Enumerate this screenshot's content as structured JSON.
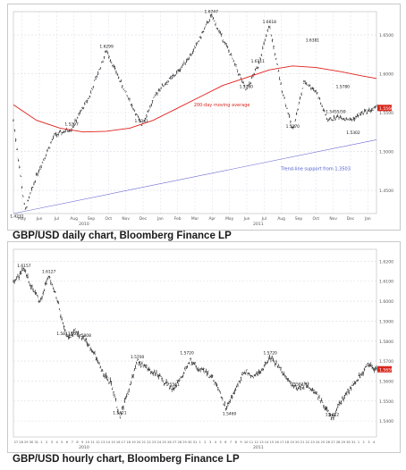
{
  "charts_meta": {
    "caption_daily": "GBP/USD daily chart, Bloomberg Finance LP",
    "caption_hourly": "GBP/USD hourly chart, Bloomberg Finance LP",
    "colors": {
      "price": "#111111",
      "ma": "#e0201a",
      "trend": "#6a6ad6",
      "grid": "#d8dde6",
      "axis": "#555555",
      "annot_red": "#d8261c",
      "annot_blue": "#4a5ad0",
      "last_box": "#d8261c"
    }
  },
  "chart_data": [
    {
      "type": "line",
      "title": "GBP/USD daily chart, Bloomberg Finance LP",
      "x_axis": {
        "tick_labels": [
          "May",
          "Jun",
          "Jul",
          "Aug",
          "Sep",
          "Oct",
          "Nov",
          "Dec",
          "Jan",
          "Feb",
          "Mar",
          "Apr",
          "May",
          "Jun",
          "Jul",
          "Aug",
          "Sep",
          "Oct",
          "Nov",
          "Dec",
          "Jan"
        ],
        "year_labels": [
          "2010",
          "2011"
        ]
      },
      "y_axis": {
        "tick_labels": [
          "1.4500",
          "1.5000",
          "1.5500",
          "1.6000",
          "1.6500"
        ],
        "ylim": [
          1.42,
          1.68
        ],
        "side": "right"
      },
      "last_value": "1.5560",
      "series": [
        {
          "name": "GBP/USD",
          "x": [
            0,
            10,
            20,
            35,
            50,
            65,
            80,
            95,
            110,
            125,
            140,
            155,
            170,
            185,
            200,
            210,
            220,
            230,
            240,
            250,
            260,
            270,
            280,
            290,
            300,
            312
          ],
          "values": [
            1.54,
            1.4231,
            1.47,
            1.52,
            1.5297,
            1.57,
            1.6299,
            1.58,
            1.5341,
            1.58,
            1.6,
            1.63,
            1.6747,
            1.63,
            1.578,
            1.61,
            1.6618,
            1.585,
            1.527,
            1.59,
            1.578,
            1.54,
            1.545,
            1.54,
            1.55,
            1.556
          ]
        },
        {
          "name": "200-day moving average",
          "x": [
            0,
            20,
            40,
            60,
            80,
            100,
            120,
            140,
            160,
            180,
            200,
            220,
            240,
            260,
            280,
            300,
            312
          ],
          "values": [
            1.56,
            1.54,
            1.53,
            1.525,
            1.526,
            1.53,
            1.54,
            1.555,
            1.57,
            1.585,
            1.595,
            1.605,
            1.61,
            1.608,
            1.603,
            1.597,
            1.594
          ]
        },
        {
          "name": "Trend-line support from 1.3503",
          "x": [
            0,
            312
          ],
          "values": [
            1.42,
            1.515
          ]
        }
      ],
      "annotations": [
        {
          "text": "1.4231",
          "x": 3,
          "y": 1.4231
        },
        {
          "text": "1.5297",
          "x": 50,
          "y": 1.5297
        },
        {
          "text": "1.6299",
          "x": 80,
          "y": 1.6299
        },
        {
          "text": "1.5341",
          "x": 110,
          "y": 1.5341
        },
        {
          "text": "1.6747",
          "x": 170,
          "y": 1.6747
        },
        {
          "text": "1.6618",
          "x": 220,
          "y": 1.6618
        },
        {
          "text": "1.5780",
          "x": 200,
          "y": 1.578
        },
        {
          "text": "1.6111",
          "x": 210,
          "y": 1.6111
        },
        {
          "text": "1.5270",
          "x": 240,
          "y": 1.527
        },
        {
          "text": "1.6381",
          "x": 257,
          "y": 1.6381
        },
        {
          "text": "1.5780",
          "x": 283,
          "y": 1.578
        },
        {
          "text": "1.5455/59",
          "x": 277,
          "y": 1.5459
        },
        {
          "text": "1.5302",
          "x": 292,
          "y": 1.5302
        },
        {
          "text": "200-day moving average",
          "x": 155,
          "y": 1.558,
          "color": "red"
        },
        {
          "text": "Trend-line support from 1.3503",
          "x": 230,
          "y": 1.476,
          "color": "blue"
        }
      ]
    },
    {
      "type": "line",
      "title": "GBP/USD hourly chart, Bloomberg Finance LP",
      "x_axis": {
        "tick_labels": [
          "27",
          "28",
          "29",
          "30",
          "31",
          "1",
          "2",
          "3",
          "4",
          "5",
          "6",
          "7",
          "8",
          "9",
          "10",
          "11",
          "12",
          "13",
          "14",
          "15",
          "16",
          "17",
          "18",
          "19",
          "20",
          "21",
          "22",
          "23",
          "24",
          "25",
          "26",
          "27",
          "28",
          "29",
          "30",
          "31",
          "1",
          "2",
          "3",
          "4",
          "5",
          "6",
          "7",
          "8",
          "9",
          "10",
          "11",
          "12",
          "13",
          "14",
          "15",
          "16",
          "17",
          "18",
          "19",
          "20",
          "21",
          "22",
          "23",
          "24",
          "25",
          "26",
          "27",
          "28",
          "29",
          "30",
          "31",
          "1",
          "2",
          "3",
          "4"
        ],
        "year_labels": [
          "2010",
          "2011"
        ]
      },
      "y_axis": {
        "tick_labels": [
          "1.5400",
          "1.5500",
          "1.5600",
          "1.5700",
          "1.5800",
          "1.5900",
          "1.6000",
          "1.6100",
          "1.6200"
        ],
        "ylim": [
          1.532,
          1.626
        ],
        "side": "right"
      },
      "last_value": "1.5659",
      "series": [
        {
          "name": "GBP/USD",
          "x": [
            0,
            12,
            20,
            30,
            40,
            50,
            60,
            70,
            80,
            90,
            100,
            110,
            120,
            130,
            140,
            150,
            160,
            170,
            180,
            190,
            200,
            210,
            220,
            230,
            240,
            250,
            260,
            270,
            280,
            290,
            300,
            310,
            320,
            330,
            340,
            350,
            360,
            370,
            380,
            390,
            400,
            410
          ],
          "values": [
            1.61,
            1.6157,
            1.608,
            1.6,
            1.6127,
            1.6,
            1.5817,
            1.585,
            1.5808,
            1.575,
            1.565,
            1.559,
            1.5421,
            1.555,
            1.57,
            1.567,
            1.564,
            1.56,
            1.5561,
            1.562,
            1.57,
            1.566,
            1.564,
            1.558,
            1.546,
            1.555,
            1.565,
            1.562,
            1.565,
            1.572,
            1.567,
            1.56,
            1.5563,
            1.558,
            1.555,
            1.548,
            1.5412,
            1.55,
            1.556,
            1.562,
            1.568,
            1.5659
          ]
        }
      ],
      "annotations": [
        {
          "text": "1.6157",
          "x": 12,
          "y": 1.6157
        },
        {
          "text": "1.6127",
          "x": 40,
          "y": 1.6127
        },
        {
          "text": "1.5817/22",
          "x": 60,
          "y": 1.5817
        },
        {
          "text": "1.5808",
          "x": 80,
          "y": 1.5808
        },
        {
          "text": "1.5421",
          "x": 120,
          "y": 1.5421
        },
        {
          "text": "1.5700",
          "x": 140,
          "y": 1.57
        },
        {
          "text": "1.5720",
          "x": 196,
          "y": 1.572
        },
        {
          "text": "1.5561",
          "x": 180,
          "y": 1.5561
        },
        {
          "text": "1.5460",
          "x": 244,
          "y": 1.546
        },
        {
          "text": "1.5720",
          "x": 290,
          "y": 1.572
        },
        {
          "text": "1.5563",
          "x": 320,
          "y": 1.5563
        },
        {
          "text": "1.5412",
          "x": 360,
          "y": 1.5412
        }
      ]
    }
  ]
}
